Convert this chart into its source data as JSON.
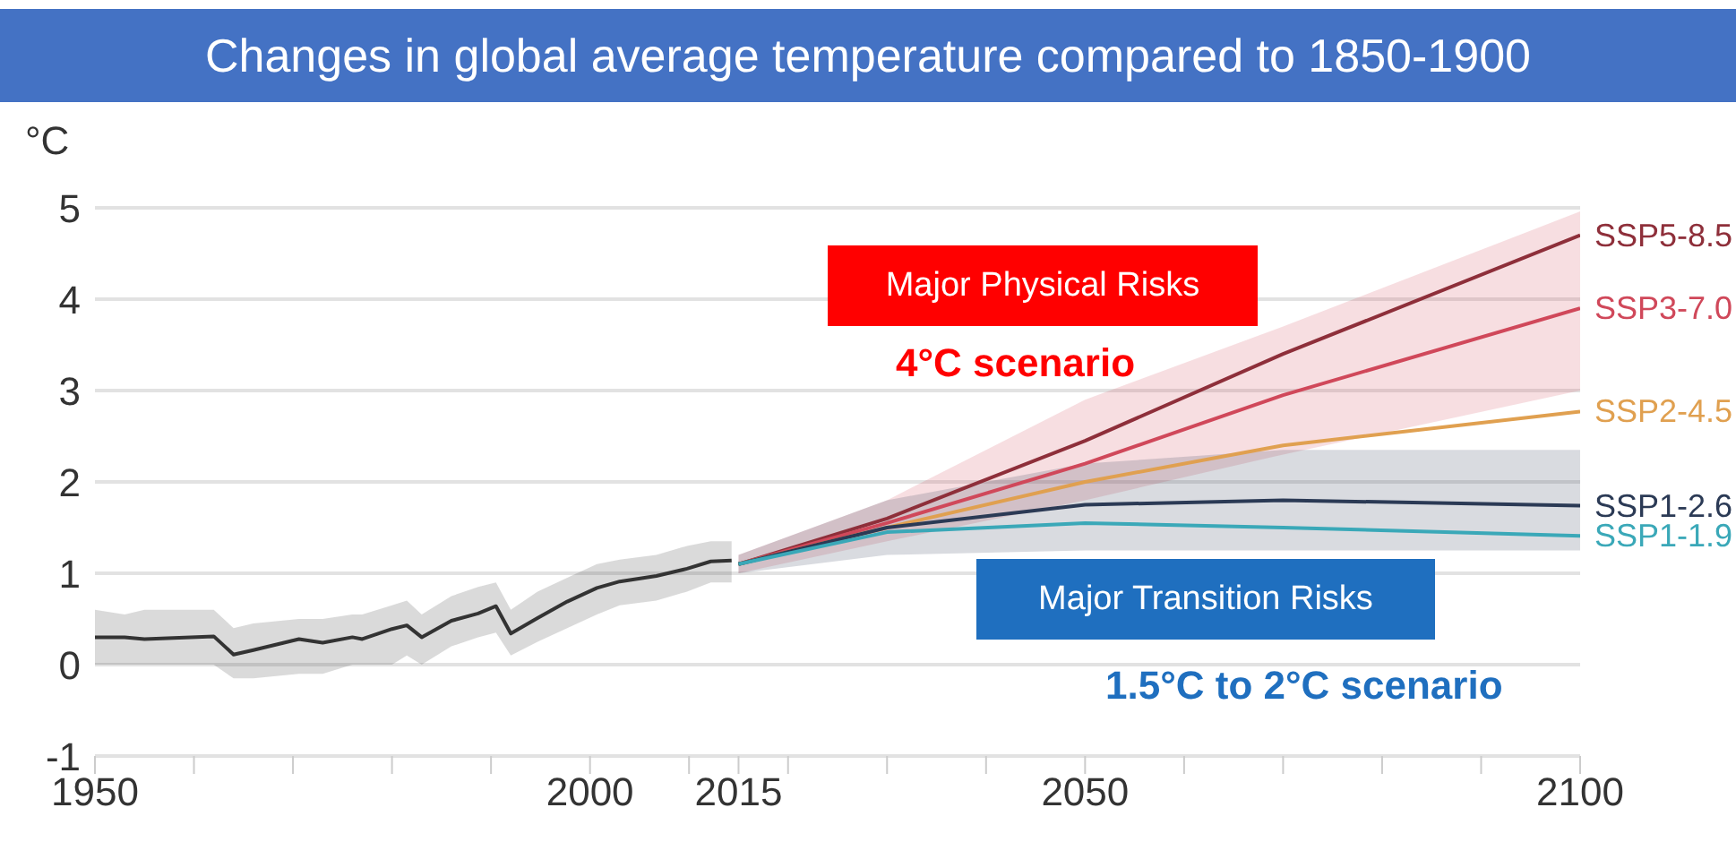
{
  "chart_data": {
    "type": "line",
    "title": "Changes in global average temperature compared to 1850-1900",
    "ylabel": "°C",
    "annotations": [
      "Major Physical Risks",
      "4°C scenario",
      "Major Transition Risks",
      "1.5°C to 2°C scenario"
    ],
    "xlim": [
      1950,
      2100
    ],
    "xticks": [
      1950,
      {
        "value": 1960,
        "label": null
      },
      {
        "value": 1970,
        "label": null
      },
      {
        "value": 1980,
        "label": null
      },
      {
        "value": 1990,
        "label": null
      },
      2000,
      {
        "value": 2010,
        "label": null
      },
      2015,
      {
        "value": 2020,
        "label": null
      },
      {
        "value": 2030,
        "label": null
      },
      {
        "value": 2040,
        "label": null
      },
      2050,
      {
        "value": 2060,
        "label": null
      },
      {
        "value": 2070,
        "label": null
      },
      {
        "value": 2080,
        "label": null
      },
      {
        "value": 2090,
        "label": null
      },
      2100
    ],
    "ylim": [
      -1,
      5
    ],
    "yticks": [
      -1,
      0,
      1,
      2,
      3,
      4,
      5
    ],
    "grid": "y",
    "marker": "none",
    "line_style": "solid",
    "series": [
      {
        "color": "#333333",
        "x": [
          1950,
          1953,
          1955,
          1962,
          1964,
          1966,
          1970.6,
          1973,
          1976,
          1977,
          1980,
          1981.5,
          1983,
          1986,
          1988.7,
          1990.5,
          1992,
          1994.7,
          1997.7,
          2000.7,
          2003,
          2006.7,
          2009.8,
          2012.2,
          2014.3
        ],
        "values": [
          0.3,
          0.3,
          0.28,
          0.31,
          0.11,
          0.16,
          0.28,
          0.24,
          0.3,
          0.28,
          0.39,
          0.43,
          0.3,
          0.48,
          0.56,
          0.64,
          0.34,
          0.51,
          0.69,
          0.84,
          0.91,
          0.97,
          1.05,
          1.13,
          1.14
        ],
        "lower": [
          0.0,
          0.0,
          0.0,
          0.0,
          -0.15,
          -0.15,
          -0.1,
          -0.1,
          0.0,
          0.0,
          0.0,
          0.1,
          0.0,
          0.2,
          0.3,
          0.35,
          0.1,
          0.25,
          0.4,
          0.55,
          0.65,
          0.7,
          0.8,
          0.9,
          0.9
        ],
        "upper": [
          0.6,
          0.55,
          0.6,
          0.6,
          0.4,
          0.45,
          0.5,
          0.5,
          0.55,
          0.55,
          0.65,
          0.7,
          0.55,
          0.75,
          0.85,
          0.9,
          0.6,
          0.8,
          0.95,
          1.1,
          1.15,
          1.2,
          1.3,
          1.35,
          1.35
        ]
      },
      {
        "name": "SSP5-8.5",
        "color": "#8e2f3a",
        "x": [
          2015,
          2030,
          2050,
          2070,
          2100
        ],
        "values": [
          1.1,
          1.6,
          2.45,
          3.4,
          4.7
        ]
      },
      {
        "name": "SSP3-7.0",
        "color": "#d0485a",
        "x": [
          2015,
          2030,
          2050,
          2070,
          2100
        ],
        "values": [
          1.1,
          1.55,
          2.2,
          2.95,
          3.9
        ],
        "lower": [
          1.0,
          1.35,
          1.8,
          2.3,
          3.0
        ],
        "upper": [
          1.2,
          1.8,
          2.9,
          3.7,
          4.96
        ]
      },
      {
        "name": "SSP2-4.5",
        "color": "#e0a050",
        "x": [
          2015,
          2030,
          2050,
          2070,
          2100
        ],
        "values": [
          1.1,
          1.5,
          2.0,
          2.4,
          2.77
        ]
      },
      {
        "name": "SSP1-2.6",
        "color": "#2b3a55",
        "x": [
          2015,
          2030,
          2050,
          2070,
          2100
        ],
        "values": [
          1.1,
          1.5,
          1.75,
          1.8,
          1.74
        ],
        "lower": [
          1.0,
          1.2,
          1.25,
          1.25,
          1.25
        ],
        "upper": [
          1.2,
          1.8,
          2.2,
          2.35,
          2.35
        ]
      },
      {
        "name": "SSP1-1.9",
        "color": "#3aa8b8",
        "x": [
          2015,
          2030,
          2050,
          2070,
          2100
        ],
        "values": [
          1.1,
          1.45,
          1.55,
          1.5,
          1.41
        ]
      }
    ]
  }
}
